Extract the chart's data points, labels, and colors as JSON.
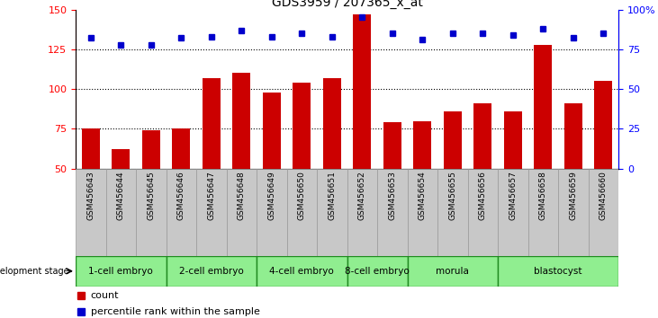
{
  "title": "GDS3959 / 207365_x_at",
  "samples": [
    "GSM456643",
    "GSM456644",
    "GSM456645",
    "GSM456646",
    "GSM456647",
    "GSM456648",
    "GSM456649",
    "GSM456650",
    "GSM456651",
    "GSM456652",
    "GSM456653",
    "GSM456654",
    "GSM456655",
    "GSM456656",
    "GSM456657",
    "GSM456658",
    "GSM456659",
    "GSM456660"
  ],
  "counts": [
    75,
    62,
    74,
    75,
    107,
    110,
    98,
    104,
    107,
    147,
    79,
    80,
    86,
    91,
    86,
    128,
    91,
    105
  ],
  "percentiles": [
    82,
    78,
    78,
    82,
    83,
    87,
    83,
    85,
    83,
    95,
    85,
    81,
    85,
    85,
    84,
    88,
    82,
    85
  ],
  "stages": [
    {
      "label": "1-cell embryo",
      "start": 0,
      "end": 3
    },
    {
      "label": "2-cell embryo",
      "start": 3,
      "end": 6
    },
    {
      "label": "4-cell embryo",
      "start": 6,
      "end": 9
    },
    {
      "label": "8-cell embryo",
      "start": 9,
      "end": 11
    },
    {
      "label": "morula",
      "start": 11,
      "end": 14
    },
    {
      "label": "blastocyst",
      "start": 14,
      "end": 18
    }
  ],
  "ylim_left": [
    50,
    150
  ],
  "ylim_right": [
    0,
    100
  ],
  "yticks_left": [
    50,
    75,
    100,
    125,
    150
  ],
  "yticks_right": [
    0,
    25,
    50,
    75,
    100
  ],
  "bar_color": "#CC0000",
  "dot_color": "#0000CC",
  "stage_color": "#90EE90",
  "stage_border": "#228B22",
  "sample_bg": "#C8C8C8",
  "sample_border": "#999999"
}
